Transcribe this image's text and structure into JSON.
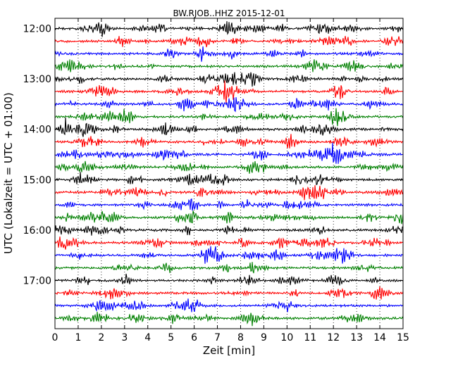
{
  "chart_data": {
    "type": "line",
    "title": "BW.RJOB..HHZ 2015-12-01",
    "xlabel": "Zeit  [min]",
    "ylabel": "UTC (Lokalzeit = UTC + 01:00)",
    "xlim": [
      0,
      15
    ],
    "x_ticks": [
      "0",
      "1",
      "2",
      "3",
      "4",
      "5",
      "6",
      "7",
      "8",
      "9",
      "10",
      "11",
      "12",
      "13",
      "14",
      "15"
    ],
    "y_ticks": [
      "12:00",
      "13:00",
      "14:00",
      "15:00",
      "16:00",
      "17:00"
    ],
    "trace_minutes": 15,
    "trace_count": 24,
    "trace_colors": [
      "#000000",
      "#ff0000",
      "#0000ff",
      "#008000"
    ],
    "grid": "vertical dotted at each minute",
    "series_start_times": [
      "12:00",
      "12:15",
      "12:30",
      "12:45",
      "13:00",
      "13:15",
      "13:30",
      "13:45",
      "14:00",
      "14:15",
      "14:30",
      "14:45",
      "15:00",
      "15:15",
      "15:30",
      "15:45",
      "16:00",
      "16:15",
      "16:30",
      "16:45",
      "17:00",
      "17:15",
      "17:30",
      "17:45"
    ]
  }
}
